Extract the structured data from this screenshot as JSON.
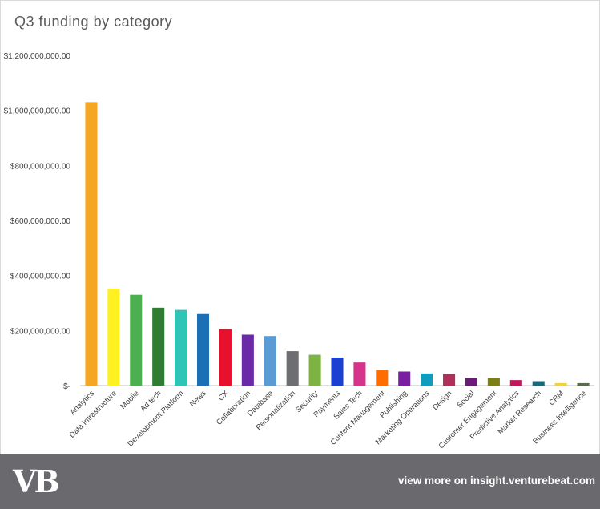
{
  "chart_data": {
    "type": "bar",
    "title": "Q3 funding by category",
    "xlabel": "",
    "ylabel": "",
    "ylim": [
      0,
      1200000000
    ],
    "yticks": [
      {
        "value": 0,
        "label": "$-"
      },
      {
        "value": 200000000,
        "label": "$200,000,000.00"
      },
      {
        "value": 400000000,
        "label": "$400,000,000.00"
      },
      {
        "value": 600000000,
        "label": "$600,000,000.00"
      },
      {
        "value": 800000000,
        "label": "$800,000,000.00"
      },
      {
        "value": 1000000000,
        "label": "$1,000,000,000.00"
      },
      {
        "value": 1200000000,
        "label": "$1,200,000,000.00"
      }
    ],
    "grid": false,
    "legend": "none",
    "categories": [
      "Analytics",
      "Data Infrastructure",
      "Mobile",
      "Ad tech",
      "Development Platform",
      "News",
      "CX",
      "Collaboration",
      "Database",
      "Personalization",
      "Security",
      "Payments",
      "Sales Tech",
      "Content Management",
      "Publishing",
      "Marketing Operations",
      "Design",
      "Social",
      "Customer Engagement",
      "Predictive Analytics",
      "Market Research",
      "CRM",
      "Business Intelligence"
    ],
    "values": [
      1030000000,
      352000000,
      330000000,
      283000000,
      275000000,
      260000000,
      205000000,
      185000000,
      180000000,
      125000000,
      112000000,
      102000000,
      84000000,
      57000000,
      51000000,
      44000000,
      42000000,
      28000000,
      27000000,
      20000000,
      16000000,
      9000000,
      9000000
    ],
    "colors": [
      "#f5a623",
      "#fff01f",
      "#4caf50",
      "#2e7d32",
      "#2ec4b6",
      "#1c6fb5",
      "#e8112d",
      "#6a2aa8",
      "#5b9bd5",
      "#6d6e71",
      "#7cb342",
      "#1a3fd1",
      "#d6338a",
      "#ff6d00",
      "#7b1fa2",
      "#0f9dbd",
      "#b0305c",
      "#6a1b7a",
      "#7d7d16",
      "#c2185b",
      "#1a6a7a",
      "#f2d13c",
      "#5a6b4e"
    ]
  },
  "footer": {
    "logo_text": "VB",
    "link_text": "view more on insight.venturebeat.com"
  }
}
